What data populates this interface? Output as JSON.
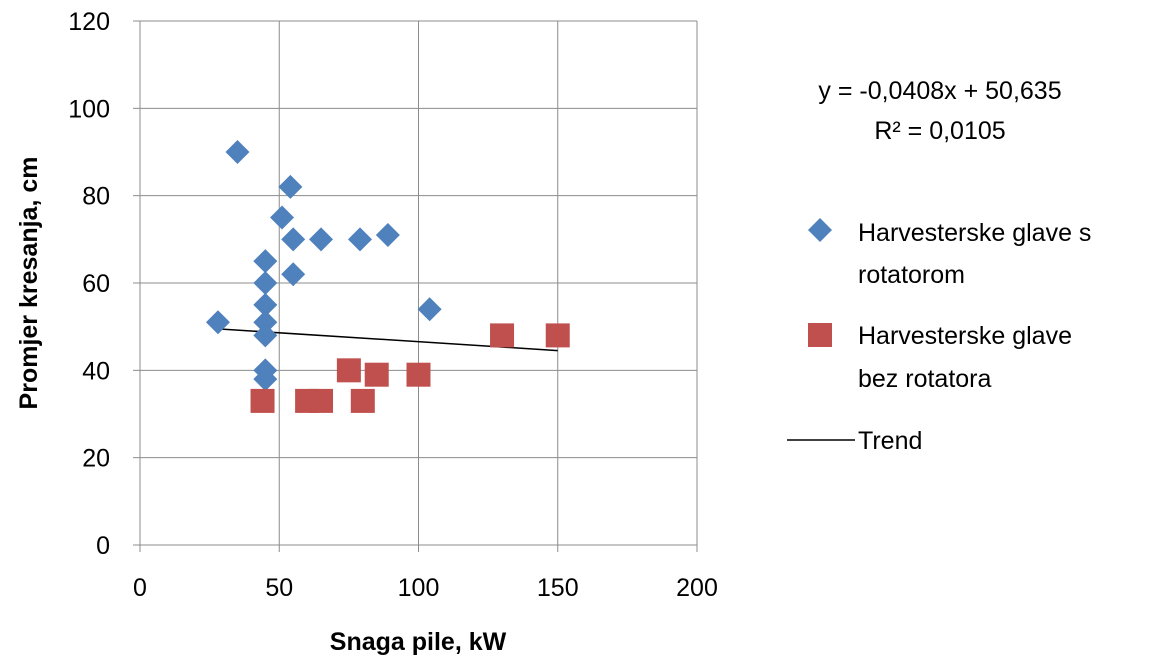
{
  "chart_data": {
    "type": "scatter",
    "xlabel": "Snaga pile, kW",
    "ylabel": "Promjer kresanja, cm",
    "xlim": [
      0,
      200
    ],
    "ylim": [
      0,
      120
    ],
    "x_ticks": [
      0,
      50,
      100,
      150,
      200
    ],
    "y_ticks": [
      0,
      20,
      40,
      60,
      80,
      100,
      120
    ],
    "grid": true,
    "legend_position": "right",
    "series": [
      {
        "name_lines": [
          "Harvesterske glave s",
          "rotatorom"
        ],
        "marker": "diamond",
        "color": "#4F81BD",
        "points": [
          [
            28,
            51
          ],
          [
            35,
            90
          ],
          [
            45,
            65
          ],
          [
            45,
            60
          ],
          [
            45,
            55
          ],
          [
            45,
            51
          ],
          [
            45,
            48
          ],
          [
            45,
            40
          ],
          [
            45,
            38
          ],
          [
            51,
            75
          ],
          [
            54,
            82
          ],
          [
            55,
            70
          ],
          [
            55,
            62
          ],
          [
            65,
            70
          ],
          [
            79,
            70
          ],
          [
            89,
            71
          ],
          [
            104,
            54
          ]
        ]
      },
      {
        "name_lines": [
          "Harvesterske glave",
          "bez rotatora"
        ],
        "marker": "square",
        "color": "#C0504D",
        "points": [
          [
            44,
            33
          ],
          [
            60,
            33
          ],
          [
            65,
            33
          ],
          [
            75,
            40
          ],
          [
            80,
            33
          ],
          [
            85,
            39
          ],
          [
            100,
            39
          ],
          [
            130,
            48
          ],
          [
            150,
            48
          ]
        ]
      }
    ],
    "trend": {
      "name": "Trend",
      "color": "#000000",
      "x_range": [
        28,
        150
      ],
      "slope": -0.0408,
      "intercept": 50.635,
      "equation": "y = -0,0408x + 50,635",
      "r_squared": "R² = 0,0105"
    }
  }
}
